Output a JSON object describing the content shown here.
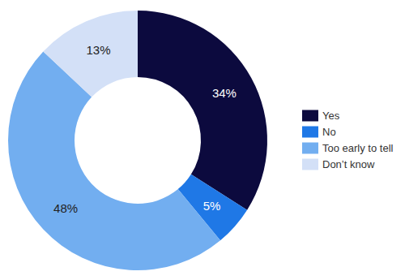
{
  "chart_data": {
    "type": "pie",
    "categories": [
      "Yes",
      "No",
      "Too early to tell",
      "Don’t know"
    ],
    "values": [
      34,
      5,
      48,
      13
    ],
    "value_labels": [
      "34%",
      "5%",
      "48%",
      "13%"
    ],
    "colors": [
      "#0c0a3e",
      "#1f78e6",
      "#72aef0",
      "#d3e0f7"
    ],
    "data_labels": true,
    "legend": "right"
  }
}
